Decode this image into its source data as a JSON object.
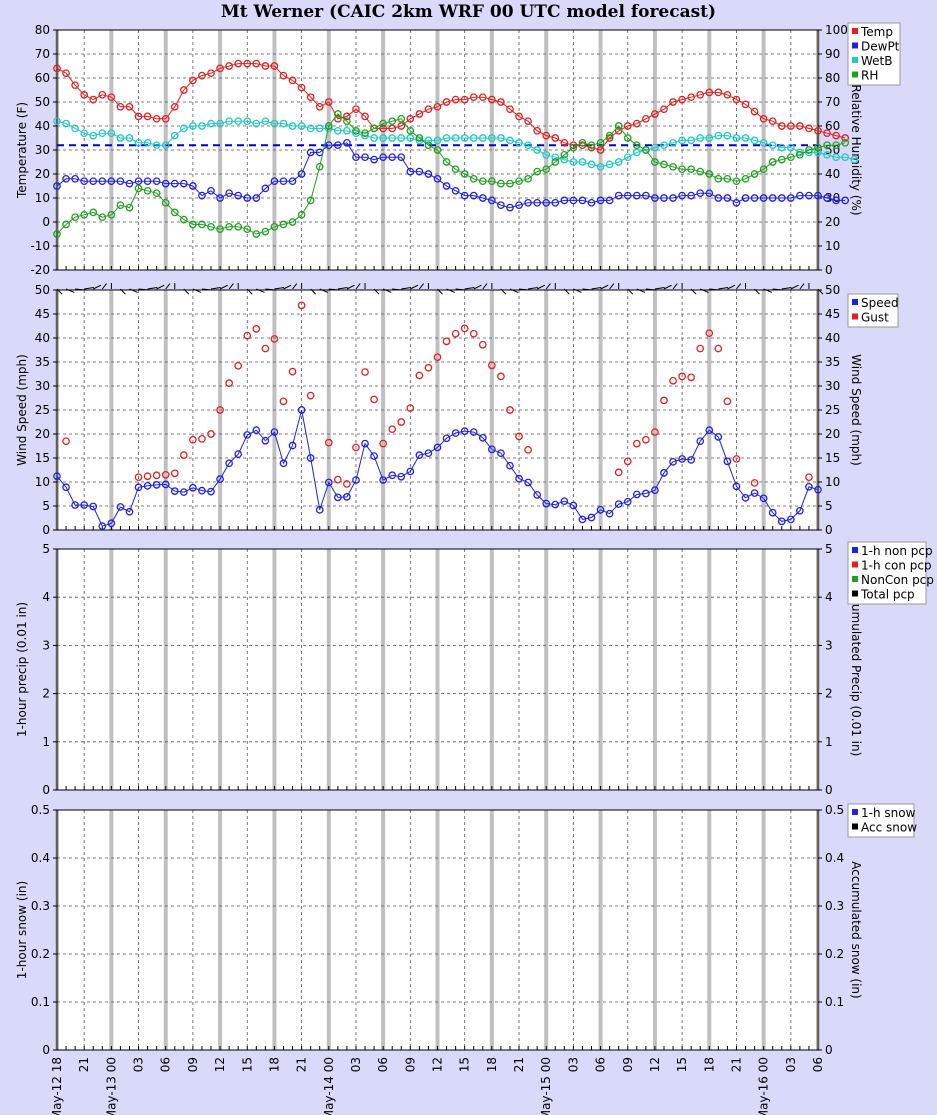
{
  "title": "Mt Werner (CAIC 2km WRF 00 UTC model forecast)",
  "x_axis": {
    "ticks": [
      {
        "h": 0,
        "label": "May-12 18"
      },
      {
        "h": 3,
        "label": "21"
      },
      {
        "h": 6,
        "label": "May-13 00"
      },
      {
        "h": 9,
        "label": "03"
      },
      {
        "h": 12,
        "label": "06"
      },
      {
        "h": 15,
        "label": "09"
      },
      {
        "h": 18,
        "label": "12"
      },
      {
        "h": 21,
        "label": "15"
      },
      {
        "h": 24,
        "label": "18"
      },
      {
        "h": 27,
        "label": "21"
      },
      {
        "h": 30,
        "label": "May-14 00"
      },
      {
        "h": 33,
        "label": "03"
      },
      {
        "h": 36,
        "label": "06"
      },
      {
        "h": 39,
        "label": "09"
      },
      {
        "h": 42,
        "label": "12"
      },
      {
        "h": 45,
        "label": "15"
      },
      {
        "h": 48,
        "label": "18"
      },
      {
        "h": 51,
        "label": "21"
      },
      {
        "h": 54,
        "label": "May-15 00"
      },
      {
        "h": 57,
        "label": "03"
      },
      {
        "h": 60,
        "label": "06"
      },
      {
        "h": 63,
        "label": "09"
      },
      {
        "h": 66,
        "label": "12"
      },
      {
        "h": 69,
        "label": "15"
      },
      {
        "h": 72,
        "label": "18"
      },
      {
        "h": 75,
        "label": "21"
      },
      {
        "h": 78,
        "label": "May-16 00"
      },
      {
        "h": 81,
        "label": "03"
      },
      {
        "h": 84,
        "label": "06"
      }
    ],
    "hours_per_point": 1
  },
  "chart_data": [
    {
      "type": "line",
      "id": "temperature",
      "ylabel": "Temperature (F)",
      "y2label": "Relative Humidity (%)",
      "ylim": [
        -20,
        80
      ],
      "y2lim": [
        0,
        100
      ],
      "yticks": [
        -20,
        -10,
        0,
        10,
        20,
        30,
        40,
        50,
        60,
        70,
        80
      ],
      "y2ticks": [
        0,
        10,
        20,
        30,
        40,
        50,
        60,
        70,
        80,
        90,
        100
      ],
      "freezing_line": 32,
      "series": [
        {
          "name": "Temp",
          "color": "#e02020",
          "axis": "left",
          "values": [
            64,
            62,
            57,
            53,
            51,
            53,
            52,
            48,
            48,
            44,
            44,
            43,
            43,
            48,
            55,
            59,
            61,
            62,
            64,
            65,
            66,
            66,
            66,
            65,
            65,
            61,
            59,
            56,
            52,
            48,
            50,
            43,
            44,
            47,
            44,
            39,
            39,
            39,
            40,
            43,
            45,
            47,
            48,
            50,
            51,
            51,
            52,
            52,
            51,
            50,
            47,
            44,
            42,
            38,
            36,
            35,
            33,
            32,
            32,
            31,
            30,
            35,
            38,
            40,
            41,
            43,
            45,
            47,
            50,
            51,
            52,
            53,
            54,
            54,
            53,
            51,
            49,
            46,
            43,
            42,
            40,
            40,
            40,
            39,
            38,
            37,
            36,
            35
          ]
        },
        {
          "name": "DewPt",
          "color": "#2020e0",
          "axis": "left",
          "values": [
            15,
            18,
            18,
            17,
            17,
            17,
            17,
            17,
            16,
            17,
            17,
            17,
            16,
            16,
            16,
            15,
            11,
            13,
            10,
            12,
            11,
            10,
            10,
            14,
            17,
            17,
            17,
            20,
            29,
            29,
            32,
            32,
            33,
            27,
            27,
            26,
            27,
            27,
            27,
            21,
            21,
            20,
            18,
            15,
            13,
            11,
            11,
            10,
            9,
            7,
            6,
            7,
            8,
            8,
            8,
            8,
            9,
            9,
            9,
            8,
            9,
            9,
            11,
            11,
            11,
            11,
            10,
            10,
            10,
            11,
            11,
            12,
            12,
            10,
            10,
            8,
            10,
            10,
            10,
            10,
            10,
            10,
            11,
            11,
            11,
            10,
            9,
            9
          ]
        },
        {
          "name": "WetB",
          "color": "#20c8c8",
          "axis": "left",
          "values": [
            42,
            41,
            39,
            37,
            36,
            37,
            37,
            35,
            35,
            33,
            33,
            32,
            32,
            36,
            39,
            40,
            40,
            41,
            41,
            42,
            42,
            42,
            41,
            42,
            41,
            41,
            40,
            40,
            39,
            39,
            39,
            38,
            38,
            37,
            36,
            35,
            35,
            35,
            35,
            35,
            34,
            34,
            34,
            35,
            35,
            35,
            35,
            35,
            35,
            35,
            34,
            33,
            32,
            30,
            28,
            27,
            26,
            25,
            25,
            24,
            23,
            24,
            25,
            27,
            29,
            30,
            31,
            32,
            33,
            34,
            34,
            35,
            35,
            36,
            36,
            35,
            35,
            34,
            33,
            32,
            31,
            31,
            29,
            29,
            29,
            28,
            27,
            27,
            26
          ]
        },
        {
          "name": "RH",
          "color": "#20a020",
          "axis": "right",
          "values": [
            15,
            19,
            22,
            23,
            24,
            22,
            23,
            27,
            26,
            34,
            33,
            32,
            28,
            24,
            21,
            19,
            19,
            18,
            17,
            18,
            18,
            17,
            15,
            16,
            18,
            19,
            20,
            23,
            29,
            43,
            60,
            65,
            62,
            58,
            57,
            59,
            61,
            62,
            63,
            58,
            55,
            52,
            50,
            45,
            42,
            40,
            38,
            37,
            37,
            36,
            36,
            37,
            38,
            41,
            42,
            45,
            48,
            51,
            53,
            52,
            53,
            56,
            60,
            55,
            52,
            50,
            45,
            44,
            43,
            42,
            42,
            41,
            40,
            38,
            38,
            37,
            38,
            40,
            42,
            45,
            46,
            47,
            48,
            50,
            51,
            52,
            52,
            53
          ]
        }
      ]
    },
    {
      "type": "scatter",
      "id": "wind",
      "ylabel": "Wind Speed (mph)",
      "y2label": "Wind Speed (mph)",
      "ylim": [
        0,
        50
      ],
      "yticks": [
        0,
        5,
        10,
        15,
        20,
        25,
        30,
        35,
        40,
        45,
        50
      ],
      "series": [
        {
          "name": "Speed",
          "color": "#2020e0",
          "connected": true,
          "values": [
            11.2,
            8.9,
            5.2,
            5.2,
            4.9,
            0.8,
            1.4,
            4.8,
            3.8,
            8.9,
            9.2,
            9.4,
            9.5,
            8.1,
            7.9,
            8.8,
            8.2,
            8,
            10.6,
            13.9,
            15.8,
            19.8,
            20.8,
            18.6,
            20.4,
            13.9,
            17.6,
            25,
            15,
            4.2,
            9.9,
            6.8,
            6.9,
            10.4,
            18,
            15.4,
            10.4,
            11.4,
            11.1,
            12.2,
            15.6,
            16,
            17.2,
            19.1,
            20.2,
            20.6,
            20.4,
            19.2,
            16.8,
            16,
            13.4,
            10.7,
            9.9,
            7.3,
            5.5,
            5.3,
            6,
            5.1,
            2.2,
            2.6,
            4.2,
            3.4,
            5.4,
            5.9,
            7.4,
            7.6,
            8.3,
            11.9,
            14.2,
            14.8,
            14.6,
            18.5,
            20.8,
            19.4,
            14.3,
            9.1,
            6.7,
            7.7,
            6.6,
            3.6,
            1.8,
            2.2,
            4,
            9,
            8.4
          ]
        },
        {
          "name": "Gust",
          "color": "#e02020",
          "connected": false,
          "values": [
            null,
            18.5,
            null,
            null,
            null,
            null,
            null,
            null,
            null,
            11,
            11.2,
            11.4,
            11.5,
            11.8,
            15.6,
            18.8,
            19,
            20,
            25,
            30.6,
            34.2,
            40.5,
            41.9,
            37.8,
            39.8,
            26.8,
            33,
            46.8,
            28,
            null,
            18.2,
            10.5,
            9.6,
            17.2,
            32.9,
            27.2,
            18,
            21,
            22.5,
            25.4,
            32.2,
            33.8,
            36,
            39.3,
            40.9,
            42,
            40.9,
            38.6,
            34.3,
            32,
            25,
            19.5,
            16.7,
            null,
            null,
            null,
            null,
            null,
            null,
            null,
            null,
            null,
            12,
            14.3,
            18,
            18.8,
            20.4,
            27,
            31.1,
            32,
            31.8,
            37.8,
            41,
            37.8,
            26.8,
            14.8,
            null,
            9.8,
            null,
            null,
            null,
            null,
            null,
            11,
            null
          ]
        }
      ]
    },
    {
      "type": "line",
      "id": "precip",
      "ylabel": "1-hour precip (0.01 in)",
      "y2label": "Accumulated Precip (0.01 in)",
      "ylim": [
        0,
        5
      ],
      "yticks": [
        0,
        1,
        2,
        3,
        4,
        5
      ],
      "series": [
        {
          "name": "1-h non pcp",
          "color": "#2020e0",
          "values": []
        },
        {
          "name": "1-h con pcp",
          "color": "#e02020",
          "values": []
        },
        {
          "name": "NonCon pcp",
          "color": "#20a020",
          "values": []
        },
        {
          "name": "Total pcp",
          "color": "#000000",
          "values": []
        }
      ]
    },
    {
      "type": "line",
      "id": "snow",
      "ylabel": "1-hour snow (in)",
      "y2label": "Accumulated snow (in)",
      "ylim": [
        0,
        0.5
      ],
      "yticks": [
        0,
        0.1,
        0.2,
        0.3,
        0.4,
        0.5
      ],
      "series": [
        {
          "name": "1-h snow",
          "color": "#2020e0",
          "values": []
        },
        {
          "name": "Acc snow",
          "color": "#000000",
          "values": []
        }
      ]
    }
  ]
}
